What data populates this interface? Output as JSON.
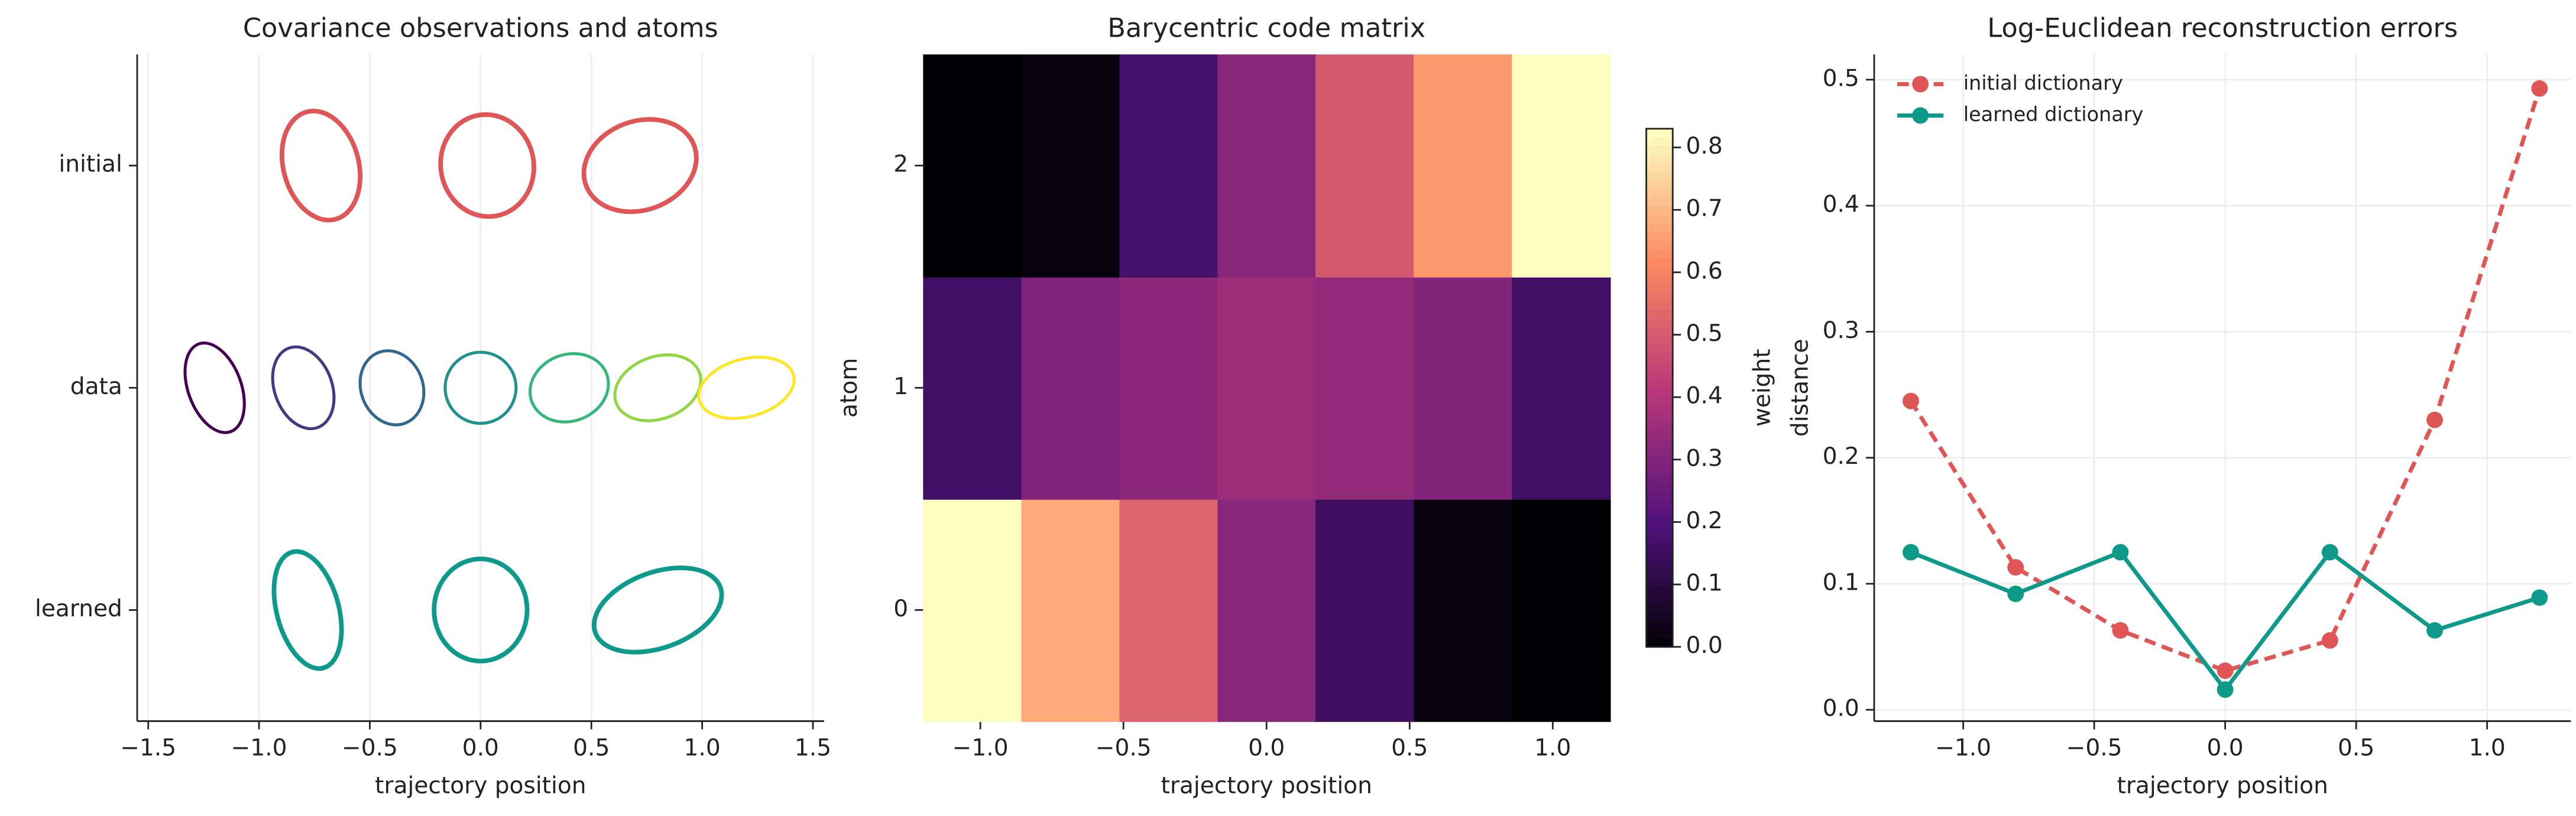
{
  "chart_data": [
    {
      "type": "ellipse",
      "title": "Covariance observations and atoms",
      "xlabel": "trajectory position",
      "xlim": [
        -1.55,
        1.55
      ],
      "xticks": [
        {
          "value": -1.5,
          "label": "−1.5"
        },
        {
          "value": -1.0,
          "label": "−1.0"
        },
        {
          "value": -0.5,
          "label": "−0.5"
        },
        {
          "value": 0.0,
          "label": "0.0"
        },
        0.5,
        {
          "value": 1.0,
          "label": "1.0"
        },
        1.5
      ],
      "ylim": [
        -0.5,
        2.5
      ],
      "grid": true,
      "rows": [
        {
          "label": "initial",
          "y": 2,
          "color": "#e05656",
          "x": [
            -0.72,
            0.03,
            0.72
          ],
          "widths": [
            0.34,
            0.42,
            0.52
          ],
          "heights": [
            0.5,
            0.46,
            0.4
          ],
          "angles": [
            -15,
            -10,
            -20
          ]
        },
        {
          "label": "data",
          "y": 1,
          "colors": [
            "#440154",
            "#443983",
            "#31688e",
            "#21918c",
            "#35b779",
            "#90d743",
            "#fde725"
          ],
          "x": [
            -1.2,
            -0.8,
            -0.4,
            0.0,
            0.4,
            0.8,
            1.2
          ],
          "widths": [
            0.24,
            0.26,
            0.28,
            0.32,
            0.36,
            0.4,
            0.44
          ],
          "heights": [
            0.42,
            0.38,
            0.34,
            0.32,
            0.3,
            0.28,
            0.26
          ],
          "angles": [
            -20,
            -20,
            -20,
            0,
            -20,
            -20,
            -15
          ]
        },
        {
          "label": "learned",
          "y": 0,
          "color": "#0e9a8a",
          "x": [
            -0.78,
            0.0,
            0.8
          ],
          "widths": [
            0.28,
            0.42,
            0.6
          ],
          "heights": [
            0.54,
            0.46,
            0.34
          ],
          "angles": [
            -15,
            0,
            -20
          ]
        }
      ]
    },
    {
      "type": "heatmap",
      "title": "Barycentric code matrix",
      "xlabel": "trajectory position",
      "ylabel": "atom",
      "xlim": [
        -1.2,
        1.2
      ],
      "xticks": [
        {
          "value": -1.0,
          "label": "−1.0"
        },
        {
          "value": -0.5,
          "label": "−0.5"
        },
        {
          "value": 0.0,
          "label": "0.0"
        },
        0.5,
        {
          "value": 1.0,
          "label": "1.0"
        }
      ],
      "ylim": [
        -0.5,
        2.5
      ],
      "yticks": [
        0,
        1,
        2
      ],
      "x_edges": [
        -1.2,
        -0.857,
        -0.514,
        -0.171,
        0.171,
        0.514,
        0.857,
        1.2
      ],
      "z": [
        [
          0.83,
          0.68,
          0.53,
          0.32,
          0.16,
          0.02,
          0.0
        ],
        [
          0.17,
          0.3,
          0.33,
          0.36,
          0.34,
          0.31,
          0.17
        ],
        [
          0.0,
          0.02,
          0.18,
          0.32,
          0.5,
          0.65,
          0.83
        ]
      ],
      "colormap": [
        "#000004",
        "#51127c",
        "#b73779",
        "#fc8961",
        "#fcfdbf"
      ],
      "clim": [
        0,
        0.83
      ],
      "clabel": "weight",
      "cticks": [
        {
          "value": 0.0,
          "label": "0.0"
        },
        0.1,
        0.2,
        0.3,
        0.4,
        0.5,
        0.6,
        0.7,
        0.8
      ]
    },
    {
      "type": "line",
      "title": "Log-Euclidean reconstruction errors",
      "xlabel": "trajectory position",
      "ylabel": "distance",
      "xlim": [
        -1.34,
        1.32
      ],
      "xticks": [
        {
          "value": -1.0,
          "label": "−1.0"
        },
        {
          "value": -0.5,
          "label": "−0.5"
        },
        {
          "value": 0.0,
          "label": "0.0"
        },
        0.5,
        {
          "value": 1.0,
          "label": "1.0"
        }
      ],
      "ylim": [
        -0.009,
        0.52
      ],
      "yticks": [
        {
          "value": 0.0,
          "label": "0.0"
        },
        0.1,
        0.2,
        0.3,
        0.4,
        0.5
      ],
      "grid": true,
      "legend": "upper left",
      "x": [
        -1.2,
        -0.8,
        -0.4,
        0.0,
        0.4,
        0.8,
        1.2
      ],
      "series": [
        {
          "name": "initial dictionary",
          "color": "#e05656",
          "dashed": true,
          "values": [
            0.245,
            0.113,
            0.063,
            0.031,
            0.055,
            0.23,
            0.493
          ]
        },
        {
          "name": "learned dictionary",
          "color": "#0e9a8a",
          "dashed": false,
          "values": [
            0.125,
            0.092,
            0.125,
            0.016,
            0.125,
            0.063,
            0.089
          ]
        }
      ]
    }
  ]
}
